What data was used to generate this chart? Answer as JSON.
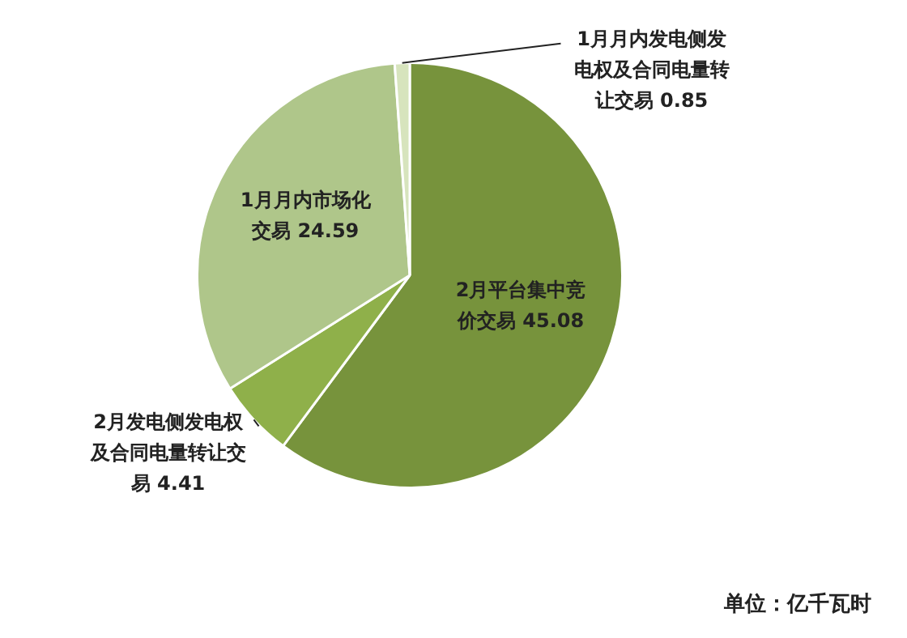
{
  "chart_data": {
    "type": "pie",
    "categories": [
      "2月平台集中竞价交易",
      "2月发电侧发电权及合同电量转让交易",
      "1月月内市场化交易",
      "1月月内发电侧发电权及合同电量转让交易"
    ],
    "values": [
      45.08,
      4.41,
      24.59,
      0.85
    ],
    "colors": [
      "#77933c",
      "#8fb04a",
      "#afc68a",
      "#d7e4bd"
    ],
    "data_labels": true,
    "legend": false,
    "annotations": [
      "单位：亿千瓦时"
    ]
  }
}
